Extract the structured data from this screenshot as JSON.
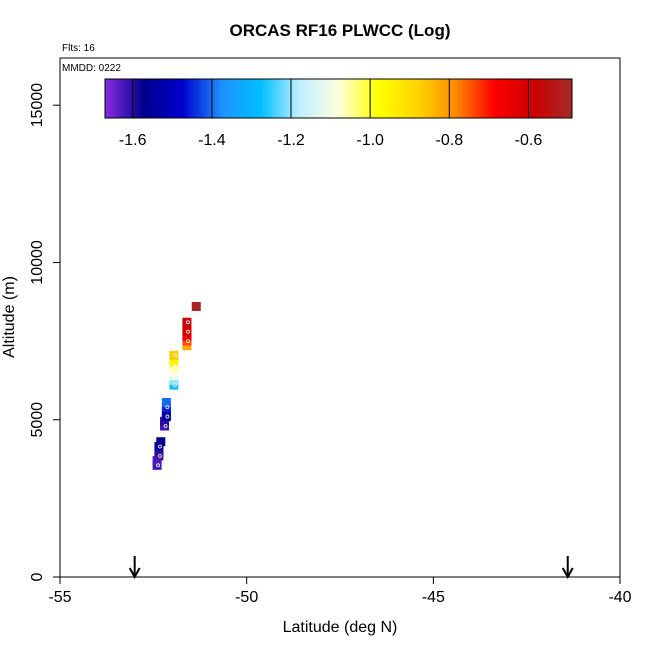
{
  "chart_data": {
    "type": "scatter",
    "title": "ORCAS RF16 PLWCC (Log)",
    "flights_label": "Flts: 16",
    "date_label": "MMDD: 0222",
    "xlabel": "Latitude (deg N)",
    "ylabel": "Altitude (m)",
    "xlim": [
      -55,
      -40
    ],
    "ylim": [
      0,
      16500
    ],
    "xticks": [
      -55,
      -50,
      -45,
      -40
    ],
    "yticks": [
      0,
      5000,
      10000,
      15000
    ],
    "xtick_labels": [
      "-55",
      "-50",
      "-45",
      "-40"
    ],
    "ytick_labels": [
      "0",
      "5000",
      "10000",
      "15000"
    ],
    "grid": false,
    "colorbar": {
      "range": [
        -1.67,
        -0.49
      ],
      "ticks": [
        -1.6,
        -1.4,
        -1.2,
        -1.0,
        -0.8,
        -0.6
      ],
      "tick_labels": [
        "-1.6",
        "-1.4",
        "-1.2",
        "-1.0",
        "-0.8",
        "-0.6"
      ],
      "colors": [
        "#8a2be2",
        "#00008b",
        "#0000cd",
        "#1e90ff",
        "#00bfff",
        "#bfefff",
        "#ffffe0",
        "#ffff00",
        "#ffd700",
        "#ff8c00",
        "#ff0000",
        "#cd0000",
        "#a52a2a"
      ]
    },
    "markers": [
      {
        "x": -53.0,
        "label": "down-arrow"
      },
      {
        "x": -41.4,
        "label": "down-arrow"
      }
    ],
    "points": [
      {
        "x": -52.4,
        "y": 3550,
        "v": -1.62
      },
      {
        "x": -52.4,
        "y": 3700,
        "v": -1.63
      },
      {
        "x": -52.35,
        "y": 3850,
        "v": -1.62
      },
      {
        "x": -52.35,
        "y": 4000,
        "v": -1.6
      },
      {
        "x": -52.35,
        "y": 4150,
        "v": -1.58
      },
      {
        "x": -52.3,
        "y": 4300,
        "v": -1.56
      },
      {
        "x": -52.2,
        "y": 4800,
        "v": -1.62
      },
      {
        "x": -52.2,
        "y": 4950,
        "v": -1.6
      },
      {
        "x": -52.15,
        "y": 5100,
        "v": -1.55
      },
      {
        "x": -52.15,
        "y": 5250,
        "v": -1.5
      },
      {
        "x": -52.15,
        "y": 5400,
        "v": -1.45
      },
      {
        "x": -52.15,
        "y": 5550,
        "v": -1.4
      },
      {
        "x": -51.95,
        "y": 6100,
        "v": -1.27
      },
      {
        "x": -51.95,
        "y": 6250,
        "v": -1.2
      },
      {
        "x": -51.95,
        "y": 6400,
        "v": -1.12
      },
      {
        "x": -51.95,
        "y": 6550,
        "v": -1.08
      },
      {
        "x": -51.95,
        "y": 6700,
        "v": -1.05
      },
      {
        "x": -51.95,
        "y": 6850,
        "v": -0.95
      },
      {
        "x": -51.95,
        "y": 7050,
        "v": -0.87
      },
      {
        "x": -51.6,
        "y": 7350,
        "v": -0.82
      },
      {
        "x": -51.6,
        "y": 7500,
        "v": -0.74
      },
      {
        "x": -51.6,
        "y": 7650,
        "v": -0.66
      },
      {
        "x": -51.6,
        "y": 7800,
        "v": -0.6
      },
      {
        "x": -51.6,
        "y": 7950,
        "v": -0.6
      },
      {
        "x": -51.6,
        "y": 8100,
        "v": -0.57
      },
      {
        "x": -51.35,
        "y": 8600,
        "v": -0.5
      }
    ]
  }
}
